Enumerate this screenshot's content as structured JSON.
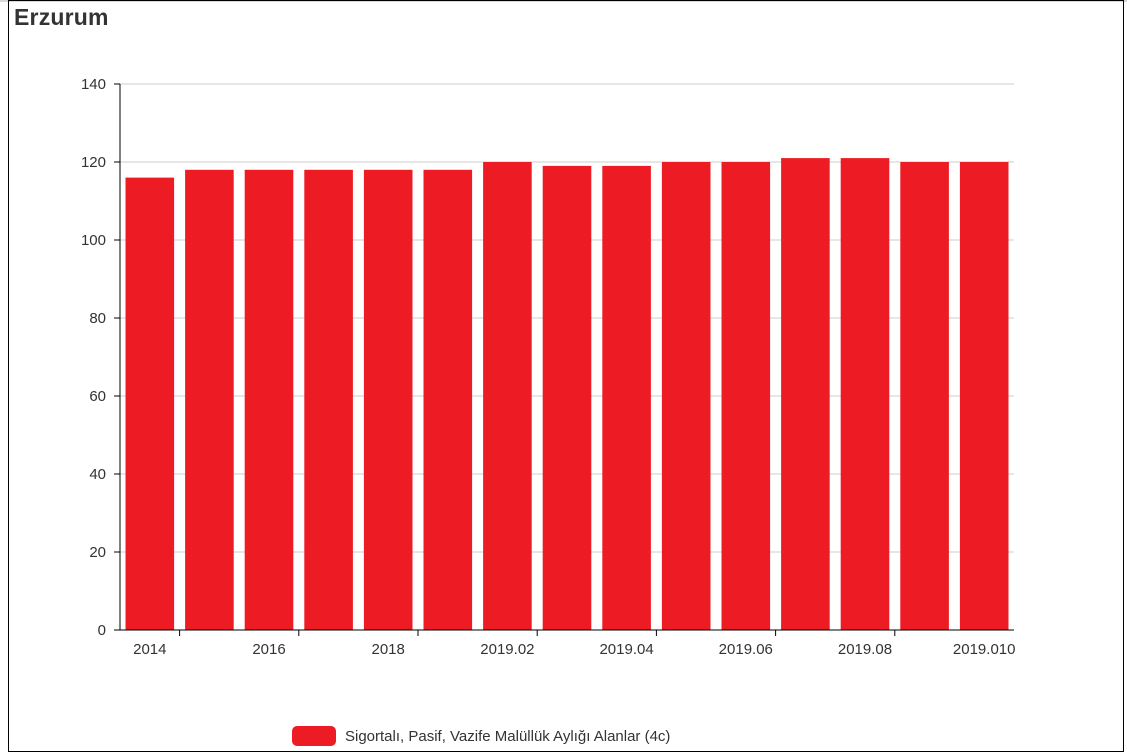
{
  "title": "Erzurum",
  "colors": {
    "bar": "#ed1c24",
    "grid": "#cccccc",
    "axis": "#000000",
    "text": "#333333"
  },
  "chart_data": {
    "type": "bar",
    "title": "Erzurum",
    "categories": [
      "2014",
      "2015",
      "2016",
      "2017",
      "2018",
      "2019.01",
      "2019.02",
      "2019.03",
      "2019.04",
      "2019.05",
      "2019.06",
      "2019.07",
      "2019.08",
      "2019.09",
      "2019.010"
    ],
    "tick_labels": [
      "2014",
      "",
      "2016",
      "",
      "2018",
      "",
      "2019.02",
      "",
      "2019.04",
      "",
      "2019.06",
      "",
      "2019.08",
      "",
      "2019.010"
    ],
    "series": [
      {
        "name": "Sigortalı, Pasif, Vazife Malüllük Aylığı Alanlar (4c)",
        "values": [
          116,
          118,
          118,
          118,
          118,
          118,
          120,
          119,
          119,
          120,
          120,
          121,
          121,
          120,
          120
        ]
      }
    ],
    "ylim": [
      0,
      140
    ],
    "yticks": [
      0,
      20,
      40,
      60,
      80,
      100,
      120,
      140
    ],
    "xlabel": "",
    "ylabel": "",
    "grid": true,
    "legend_position": "bottom-center"
  }
}
